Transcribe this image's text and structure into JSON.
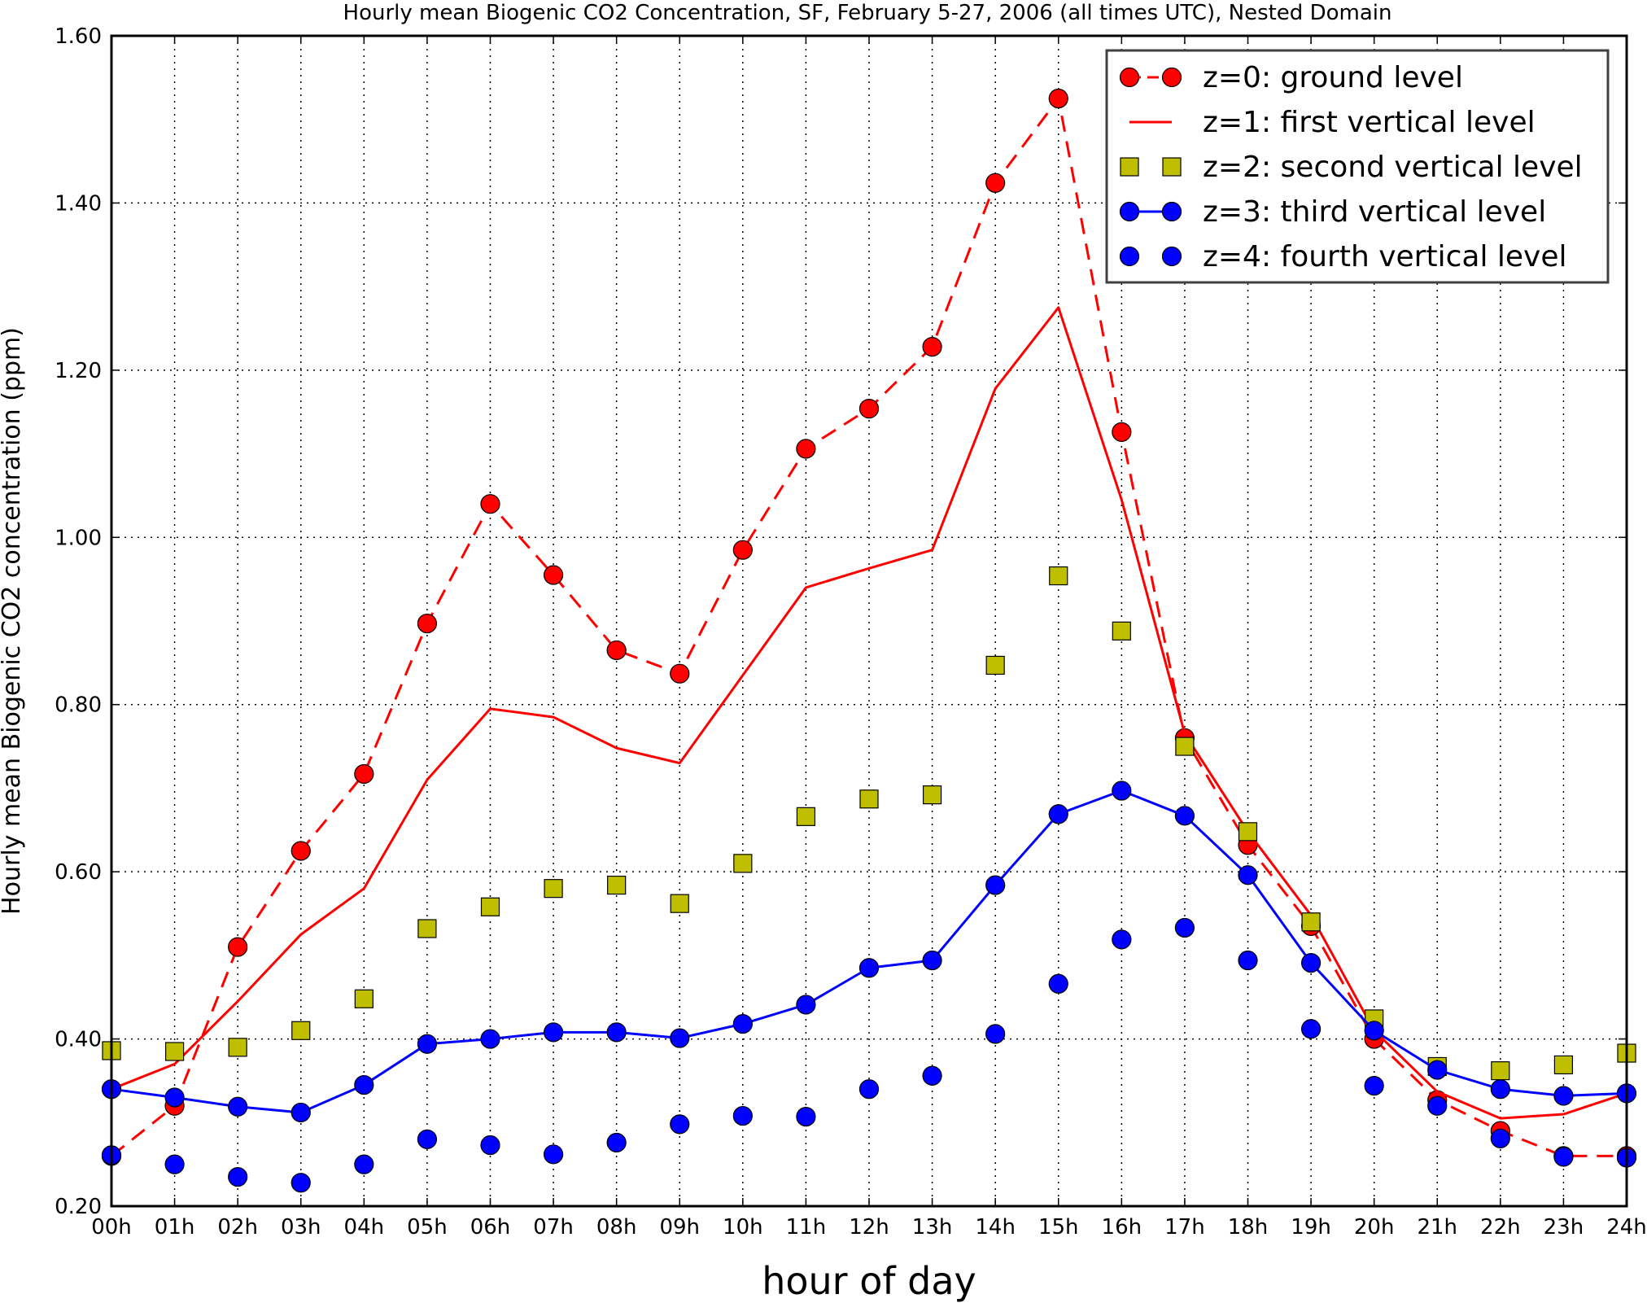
{
  "chart_data": {
    "type": "line",
    "title": "Hourly mean Biogenic CO2 Concentration, SF, February 5-27, 2006 (all times UTC), Nested Domain",
    "xlabel": "hour of day",
    "ylabel": "Hourly mean Biogenic CO2 concentration (ppm)",
    "x": [
      0,
      1,
      2,
      3,
      4,
      5,
      6,
      7,
      8,
      9,
      10,
      11,
      12,
      13,
      14,
      15,
      16,
      17,
      18,
      19,
      20,
      21,
      22,
      23,
      24
    ],
    "x_tick_labels": [
      "00h",
      "01h",
      "02h",
      "03h",
      "04h",
      "05h",
      "06h",
      "07h",
      "08h",
      "09h",
      "10h",
      "11h",
      "12h",
      "13h",
      "14h",
      "15h",
      "16h",
      "17h",
      "18h",
      "19h",
      "20h",
      "21h",
      "22h",
      "23h",
      "24h"
    ],
    "xlim": [
      0,
      24
    ],
    "ylim": [
      0.2,
      1.6
    ],
    "y_tick_labels": [
      "0.20",
      "0.40",
      "0.60",
      "0.80",
      "1.00",
      "1.20",
      "1.40",
      "1.60"
    ],
    "y_ticks": [
      0.2,
      0.4,
      0.6,
      0.8,
      1.0,
      1.2,
      1.4,
      1.6
    ],
    "grid": true,
    "legend_position": "top-right",
    "series": [
      {
        "name": "z=0: ground level",
        "style": "dashed-line-circle",
        "color": "#ff0000",
        "values": [
          0.26,
          0.32,
          0.51,
          0.625,
          0.717,
          0.897,
          1.04,
          0.955,
          0.865,
          0.837,
          0.985,
          1.106,
          1.154,
          1.228,
          1.424,
          1.525,
          1.126,
          0.76,
          0.632,
          0.535,
          0.4,
          0.327,
          0.29,
          0.26,
          0.26
        ]
      },
      {
        "name": "z=1: first vertical level",
        "style": "solid-line",
        "color": "#ff0000",
        "values": [
          0.34,
          0.37,
          0.445,
          0.525,
          0.58,
          0.71,
          0.795,
          0.785,
          0.748,
          0.73,
          0.835,
          0.94,
          0.963,
          0.985,
          1.178,
          1.275,
          1.045,
          0.765,
          0.648,
          0.548,
          0.41,
          0.337,
          0.305,
          0.31,
          0.335
        ]
      },
      {
        "name": "z=2: second vertical level",
        "style": "marker-square",
        "color": "#bfbf00",
        "values": [
          0.386,
          0.385,
          0.39,
          0.41,
          0.448,
          0.532,
          0.558,
          0.58,
          0.584,
          0.562,
          0.61,
          0.666,
          0.687,
          0.692,
          0.847,
          0.954,
          0.888,
          0.75,
          0.648,
          0.54,
          0.424,
          0.367,
          0.362,
          0.369,
          0.383
        ]
      },
      {
        "name": "z=3: third vertical level",
        "style": "solid-line-circle",
        "color": "#0000ff",
        "values": [
          0.34,
          0.33,
          0.319,
          0.312,
          0.345,
          0.394,
          0.4,
          0.408,
          0.408,
          0.401,
          0.418,
          0.441,
          0.485,
          0.494,
          0.584,
          0.669,
          0.697,
          0.667,
          0.596,
          0.491,
          0.41,
          0.363,
          0.34,
          0.332,
          0.335
        ]
      },
      {
        "name": "z=4: fourth vertical level",
        "style": "marker-circle",
        "color": "#0000ff",
        "values": [
          0.261,
          0.25,
          0.235,
          0.228,
          0.25,
          0.28,
          0.273,
          0.262,
          0.276,
          0.298,
          0.308,
          0.307,
          0.34,
          0.356,
          0.406,
          0.466,
          0.519,
          0.533,
          0.494,
          0.412,
          0.344,
          0.32,
          0.281,
          0.259,
          0.258
        ]
      }
    ]
  }
}
